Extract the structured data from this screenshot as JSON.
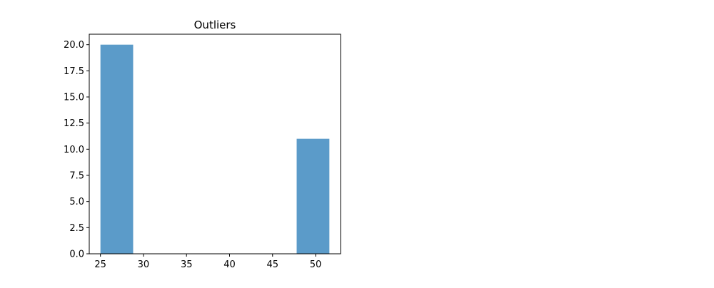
{
  "chart_data": {
    "type": "bar",
    "title": "Outliers",
    "xlabel": "",
    "ylabel": "",
    "bins": [
      {
        "x_start": 25.0,
        "x_end": 28.8,
        "count": 20
      },
      {
        "x_start": 28.8,
        "x_end": 32.6,
        "count": 0
      },
      {
        "x_start": 32.6,
        "x_end": 36.4,
        "count": 0
      },
      {
        "x_start": 36.4,
        "x_end": 40.2,
        "count": 0
      },
      {
        "x_start": 40.2,
        "x_end": 44.0,
        "count": 0
      },
      {
        "x_start": 44.0,
        "x_end": 47.8,
        "count": 0
      },
      {
        "x_start": 47.8,
        "x_end": 51.6,
        "count": 11
      }
    ],
    "xlim": [
      23.7,
      52.9
    ],
    "ylim": [
      0,
      21
    ],
    "xticks": [
      25,
      30,
      35,
      40,
      45,
      50
    ],
    "xtick_labels": [
      "25",
      "30",
      "35",
      "40",
      "45",
      "50"
    ],
    "yticks": [
      0,
      2.5,
      5,
      7.5,
      10,
      12.5,
      15,
      17.5,
      20
    ],
    "ytick_labels": [
      "0.0",
      "2.5",
      "5.0",
      "7.5",
      "10.0",
      "12.5",
      "15.0",
      "17.5",
      "20.0"
    ],
    "bar_color": "#5b9bc9",
    "grid": false,
    "legend": "none"
  }
}
